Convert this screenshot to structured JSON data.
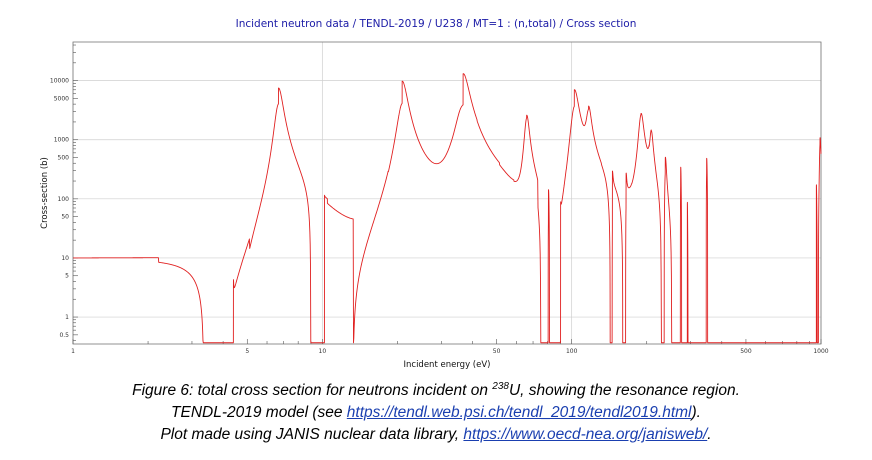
{
  "chart_data": {
    "type": "line",
    "title": "Incident neutron data / TENDL-2019 / U238 / MT=1 : (n,total) / Cross section",
    "xlabel": "Incident energy (eV)",
    "ylabel": "Cross-section (b)",
    "x_scale": "log",
    "y_scale": "log",
    "xlim": [
      1,
      1000
    ],
    "ylim": [
      0.35,
      45000
    ],
    "grid": true,
    "x_ticks": [
      {
        "value": 1,
        "label": "1"
      },
      {
        "value": 5,
        "label": "5"
      },
      {
        "value": 10,
        "label": "10"
      },
      {
        "value": 50,
        "label": "50"
      },
      {
        "value": 100,
        "label": "100"
      },
      {
        "value": 500,
        "label": "500"
      },
      {
        "value": 1000,
        "label": "1000"
      }
    ],
    "y_ticks": [
      {
        "value": 0.5,
        "label": "0.5"
      },
      {
        "value": 1,
        "label": "1"
      },
      {
        "value": 5,
        "label": "5"
      },
      {
        "value": 10,
        "label": "10"
      },
      {
        "value": 50,
        "label": "50"
      },
      {
        "value": 100,
        "label": "100"
      },
      {
        "value": 500,
        "label": "500"
      },
      {
        "value": 1000,
        "label": "1000"
      },
      {
        "value": 5000,
        "label": "5000"
      },
      {
        "value": 10000,
        "label": "10000"
      }
    ],
    "series": [
      {
        "color": "#e02020",
        "baseline": [
          [
            1,
            10.0
          ],
          [
            5,
            10.2
          ],
          [
            6.7,
            10.5
          ],
          [
            20,
            10.8
          ],
          [
            37,
            11.0
          ],
          [
            66,
            11.2
          ],
          [
            102,
            11.4
          ],
          [
            190,
            11.6
          ],
          [
            400,
            11.8
          ],
          [
            1000,
            12.0
          ]
        ],
        "resonances": [
          {
            "e": 4.4,
            "peak": 11.6,
            "dip": 9.8
          },
          {
            "e": 6.67,
            "peak": 7500,
            "dip": 7.5
          },
          {
            "e": 10.2,
            "peak": 15,
            "dip": 9.2
          },
          {
            "e": 20.9,
            "peak": 9800,
            "dip": 6.2
          },
          {
            "e": 36.7,
            "peak": 13000,
            "dip": 4.5
          },
          {
            "e": 66.0,
            "peak": 2500,
            "dip": 5.5
          },
          {
            "e": 80.7,
            "peak": 250,
            "dip": 8.0
          },
          {
            "e": 90.3,
            "peak": 35,
            "dip": 9.0
          },
          {
            "e": 102.5,
            "peak": 7000,
            "dip": 2.0
          },
          {
            "e": 116.9,
            "peak": 3000,
            "dip": 5.0
          },
          {
            "e": 145.7,
            "peak": 120,
            "dip": 8.5
          },
          {
            "e": 165.3,
            "peak": 150,
            "dip": 8.5
          },
          {
            "e": 189.7,
            "peak": 2700,
            "dip": 1.2
          },
          {
            "e": 208.5,
            "peak": 1200,
            "dip": 5.0
          },
          {
            "e": 237.4,
            "peak": 450,
            "dip": 4.5
          },
          {
            "e": 273.7,
            "peak": 500,
            "dip": 6.0
          },
          {
            "e": 291.0,
            "peak": 120,
            "dip": 8.0
          },
          {
            "e": 347.8,
            "peak": 800,
            "dip": 2.8
          },
          {
            "e": 376.9,
            "peak": 300,
            "dip": 5.0
          },
          {
            "e": 397.6,
            "peak": 250,
            "dip": 6.0
          },
          {
            "e": 410.3,
            "peak": 80,
            "dip": 8.0
          },
          {
            "e": 434.0,
            "peak": 100,
            "dip": 7.0
          },
          {
            "e": 463.0,
            "peak": 200,
            "dip": 6.0
          },
          {
            "e": 478.0,
            "peak": 60,
            "dip": 8.0
          },
          {
            "e": 518.5,
            "peak": 500,
            "dip": 3.5
          },
          {
            "e": 535.4,
            "peak": 150,
            "dip": 5.0
          },
          {
            "e": 580.0,
            "peak": 250,
            "dip": 4.0
          },
          {
            "e": 595.0,
            "peak": 80,
            "dip": 7.0
          },
          {
            "e": 619.9,
            "peak": 200,
            "dip": 4.5
          },
          {
            "e": 661.2,
            "peak": 600,
            "dip": 3.0
          },
          {
            "e": 693.1,
            "peak": 200,
            "dip": 4.0
          },
          {
            "e": 709.6,
            "peak": 300,
            "dip": 3.5
          },
          {
            "e": 721.7,
            "peak": 150,
            "dip": 5.0
          },
          {
            "e": 731.0,
            "peak": 60,
            "dip": 7.0
          },
          {
            "e": 756.4,
            "peak": 180,
            "dip": 4.0
          },
          {
            "e": 782.0,
            "peak": 80,
            "dip": 5.0
          },
          {
            "e": 821.0,
            "peak": 300,
            "dip": 3.0
          },
          {
            "e": 851.0,
            "peak": 200,
            "dip": 3.5
          },
          {
            "e": 856.0,
            "peak": 100,
            "dip": 5.0
          },
          {
            "e": 866.0,
            "peak": 150,
            "dip": 4.5
          },
          {
            "e": 905.0,
            "peak": 250,
            "dip": 2.5
          },
          {
            "e": 910.0,
            "peak": 120,
            "dip": 4.0
          },
          {
            "e": 925.0,
            "peak": 600,
            "dip": 1.8
          },
          {
            "e": 937.0,
            "peak": 350,
            "dip": 2.0
          },
          {
            "e": 958.0,
            "peak": 200,
            "dip": 3.0
          },
          {
            "e": 991.0,
            "peak": 1000,
            "dip": 1.0
          }
        ]
      }
    ]
  },
  "caption": {
    "line1_a": "Figure 6: total cross section for neutrons incident on ",
    "line1_sup": "238",
    "line1_b": "U, showing the resonance region.",
    "line2_a": "TENDL-2019 model (see ",
    "line2_link": "https://tendl.web.psi.ch/tendl_2019/tendl2019.html",
    "line2_b": ").",
    "line3_a": "Plot made using JANIS nuclear data library, ",
    "line3_link": "https://www.oecd-nea.org/janisweb/",
    "line3_b": "."
  }
}
